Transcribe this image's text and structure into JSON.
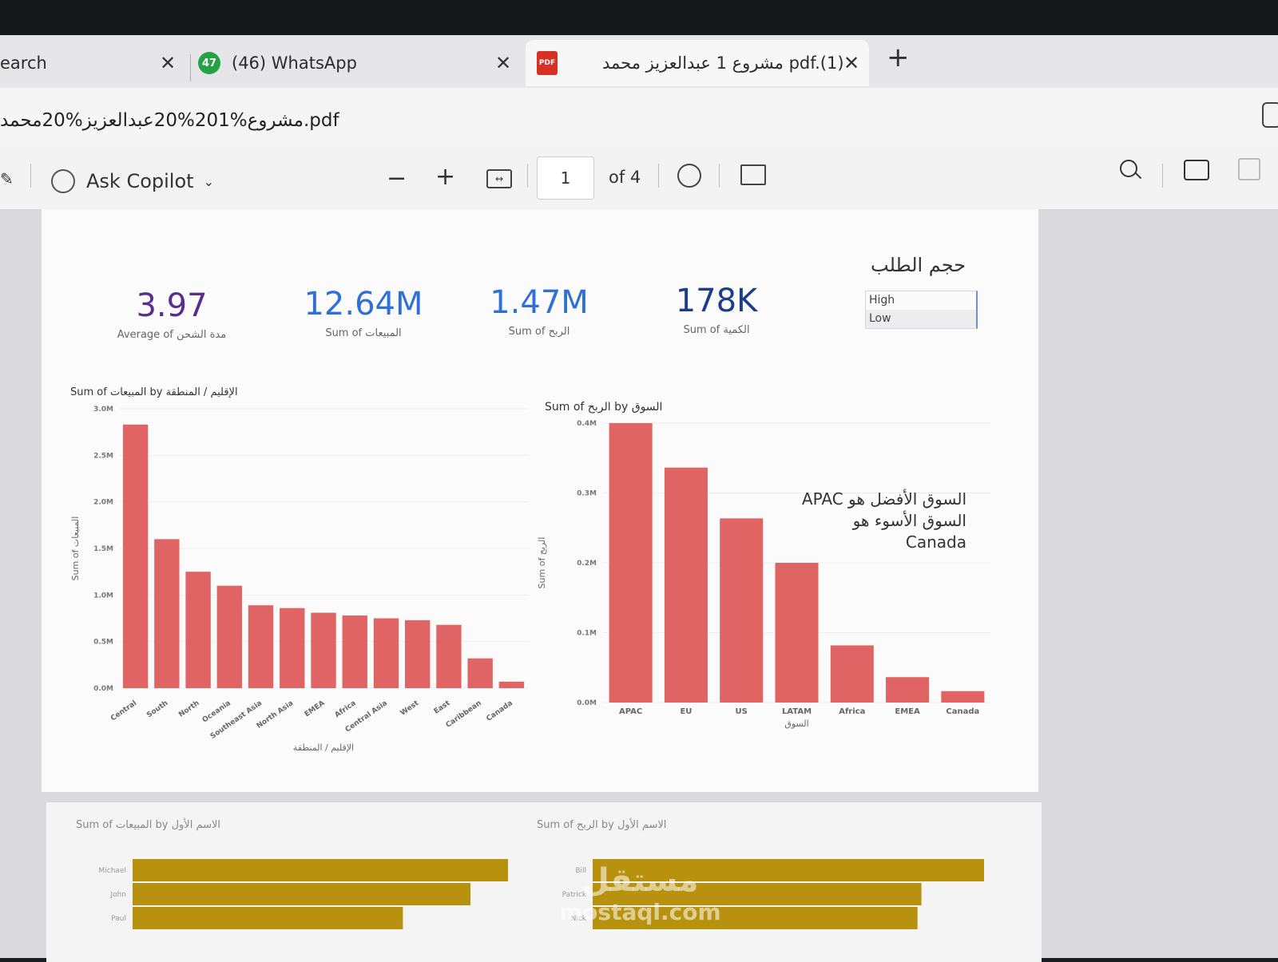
{
  "browser": {
    "tabs": [
      {
        "label": "earch"
      },
      {
        "label": "(46) WhatsApp",
        "badge": "47"
      },
      {
        "label": "pdf.(1) مشروع 1 عبدالعزيز محمد",
        "icon": "pdf-icon"
      }
    ],
    "url": "مشروع%201%20عبدالعزيز%20محمد.pdf"
  },
  "pdf_toolbar": {
    "copilot_label": "Ask Copilot",
    "page_current": "1",
    "page_total": "of 4",
    "zoom_out": "−",
    "zoom_in": "+"
  },
  "kpis": [
    {
      "value": "3.97",
      "label": "Average of مدة الشحن",
      "color": "#5b2c8e"
    },
    {
      "value": "12.64M",
      "label": "Sum of المبيعات",
      "color": "#2f6fd6"
    },
    {
      "value": "1.47M",
      "label": "Sum of الربح",
      "color": "#2f6fd6"
    },
    {
      "value": "178K",
      "label": "Sum of الكمية",
      "color": "#1d3c8a"
    }
  ],
  "slicer": {
    "title": "حجم الطلب",
    "options": [
      "High",
      "Low"
    ]
  },
  "note": {
    "line1": "السوق الأفضل هو APAC",
    "line2": "السوق الأسوء هو Canada"
  },
  "chart_data": [
    {
      "type": "bar",
      "title": "Sum of المبيعات by الإقليم / المنطقة",
      "xlabel": "الإقليم / المنطقة",
      "ylabel": "Sum of المبيعات",
      "categories": [
        "Central",
        "South",
        "North",
        "Oceania",
        "Southeast Asia",
        "North Asia",
        "EMEA",
        "Africa",
        "Central Asia",
        "West",
        "East",
        "Caribbean",
        "Canada"
      ],
      "values": [
        2.83,
        1.6,
        1.25,
        1.1,
        0.89,
        0.86,
        0.81,
        0.78,
        0.75,
        0.73,
        0.68,
        0.32,
        0.07
      ],
      "ylim": [
        0,
        3.0
      ],
      "yticks": [
        "0.0M",
        "0.5M",
        "1.0M",
        "1.5M",
        "2.0M",
        "2.5M",
        "3.0M"
      ],
      "color": "#e06463"
    },
    {
      "type": "bar",
      "title": "Sum of الربح by السوق",
      "xlabel": "السوق",
      "ylabel": "Sum of الربح",
      "categories": [
        "APAC",
        "EU",
        "US",
        "LATAM",
        "Africa",
        "EMEA",
        "Canada"
      ],
      "values": [
        0.44,
        0.37,
        0.29,
        0.22,
        0.09,
        0.04,
        0.018
      ],
      "ylim": [
        0,
        0.44
      ],
      "yticks": [
        "0.0M",
        "0.1M",
        "0.2M",
        "0.3M",
        "0.4M"
      ],
      "color": "#e06463"
    },
    {
      "type": "bar",
      "title": "Sum of المبيعات by الاسم الأول",
      "categories": [
        "Michael",
        "John",
        "Paul"
      ],
      "values": [
        1.0,
        0.9,
        0.72
      ],
      "color": "#b8920e"
    },
    {
      "type": "bar",
      "title": "Sum of الربح by الاسم الأول",
      "categories": [
        "Bill",
        "Patrick",
        "Nick"
      ],
      "values": [
        1.0,
        0.84,
        0.83
      ],
      "color": "#b8920e"
    }
  ],
  "watermark": {
    "ar": "مستقل",
    "en": "mostaql.com"
  }
}
